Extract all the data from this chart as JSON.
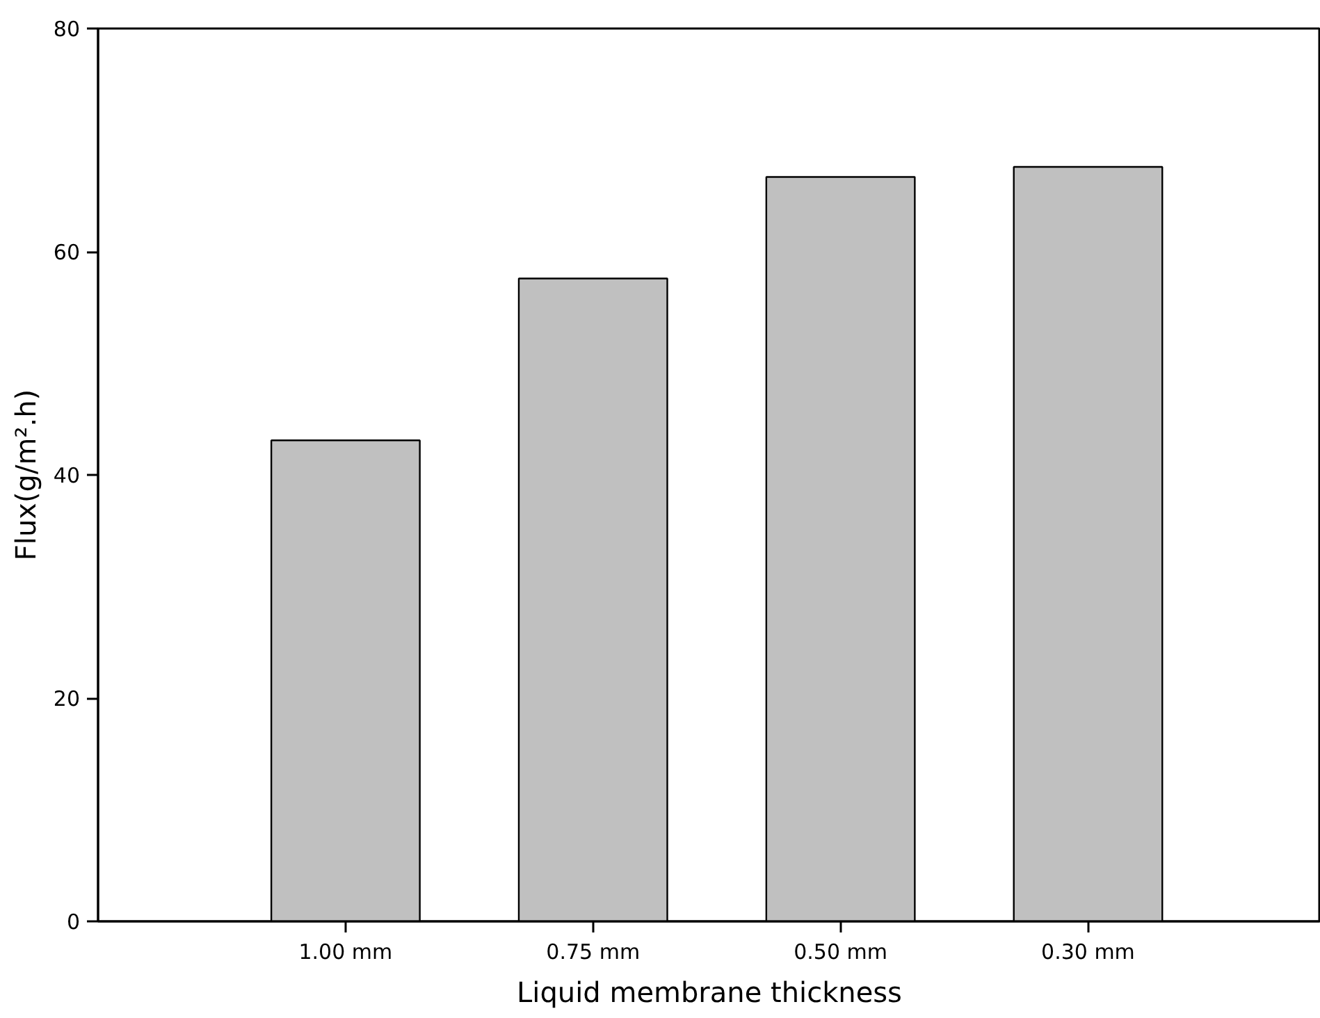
{
  "chart_data": {
    "type": "bar",
    "xlabel": "Liquid membrane thickness",
    "ylabel": "Flux(g/m².h)",
    "categories": [
      "1.00 mm",
      "0.75 mm",
      "0.50 mm",
      "0.30 mm"
    ],
    "values": [
      43.1,
      57.6,
      66.7,
      67.6
    ],
    "color": "#c0c0c0",
    "ylim": [
      0,
      80
    ],
    "yticks": [
      0,
      20,
      40,
      60,
      80
    ],
    "grid": false
  }
}
